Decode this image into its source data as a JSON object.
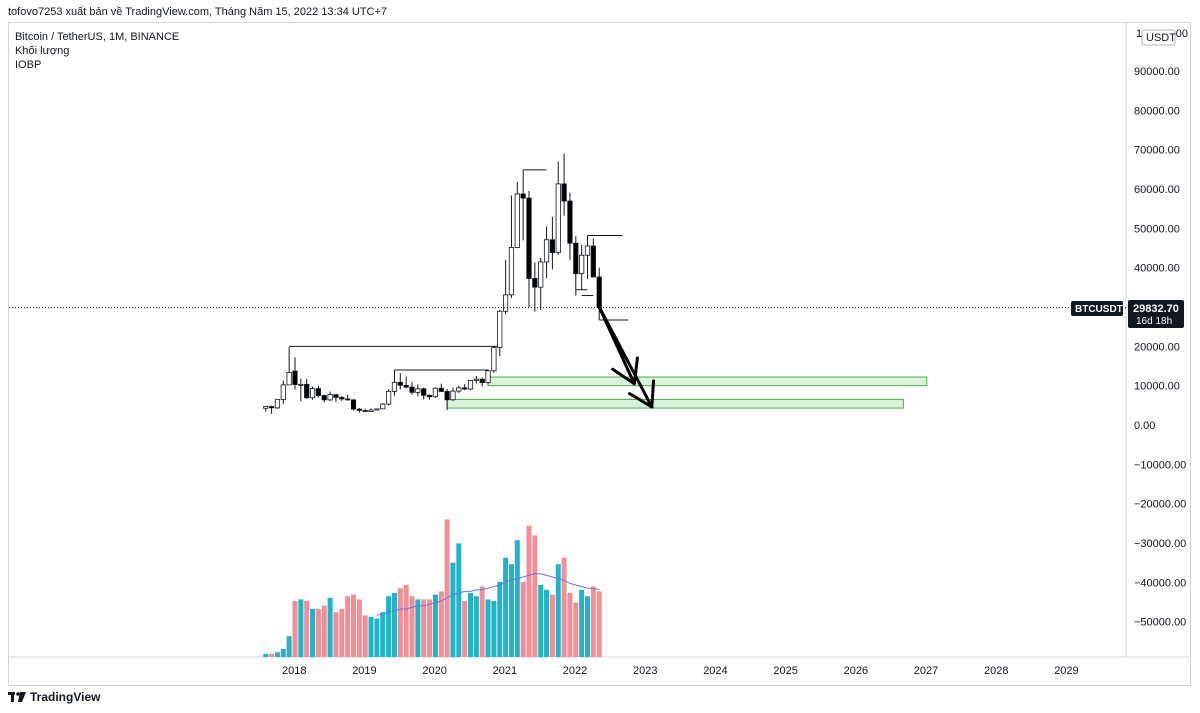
{
  "header": {
    "publish_line": "tofovo7253 xuất bản về TradingView.com, Tháng Năm 15, 2022 13:34 UTC+7"
  },
  "legend": {
    "symbol": "Bitcoin / TetherUS, 1M, BINANCE",
    "volume": "Khối lượng",
    "indicator": "IOBP"
  },
  "price_axis": {
    "currency_badge": "USDT",
    "top_partial_label": "100000.00",
    "ticks": [
      "90000.00",
      "80000.00",
      "70000.00",
      "60000.00",
      "50000.00",
      "40000.00",
      "20000.00",
      "10000.00",
      "0.00",
      "−10000.00",
      "−20000.00",
      "−30000.00",
      "−40000.00",
      "−50000.00"
    ],
    "tick_values": [
      90000,
      80000,
      70000,
      60000,
      50000,
      40000,
      20000,
      10000,
      0,
      -10000,
      -20000,
      -30000,
      -40000,
      -50000
    ]
  },
  "time_axis": {
    "ticks": [
      "2018",
      "2019",
      "2020",
      "2021",
      "2022",
      "2023",
      "2024",
      "2025",
      "2026",
      "2027",
      "2028",
      "2029"
    ]
  },
  "last_price": {
    "symbol_tag": "BTCUSDT",
    "price": "29832.70",
    "countdown": "16d 18h",
    "value": 29832.7
  },
  "footer": {
    "brand": "TradingView"
  },
  "colors": {
    "up": "#ffffff",
    "down": "#000000",
    "wick": "#131722",
    "vol_up": "#22b3c7",
    "vol_down": "#f28e96",
    "ma": "#5b7be8",
    "zone_fill": "#d9f2d9",
    "zone_stroke": "#4caf50"
  },
  "chart_data": {
    "type": "candlestick",
    "title": "Bitcoin / TetherUS, 1M, BINANCE",
    "interval": "1M",
    "ylim": [
      -60000,
      102000
    ],
    "x_range": [
      "2017-08",
      "2029-12"
    ],
    "candles": [
      {
        "t": "2017-08",
        "o": 4261,
        "h": 4745,
        "l": 3400,
        "c": 4724
      },
      {
        "t": "2017-09",
        "o": 4690,
        "h": 4939,
        "l": 2817,
        "c": 4378
      },
      {
        "t": "2017-10",
        "o": 4341,
        "h": 6447,
        "l": 4110,
        "c": 6463
      },
      {
        "t": "2017-11",
        "o": 6463,
        "h": 11300,
        "l": 5325,
        "c": 10198
      },
      {
        "t": "2017-12",
        "o": 10198,
        "h": 19798,
        "l": 10198,
        "c": 13380
      },
      {
        "t": "2018-01",
        "o": 13715,
        "h": 17176,
        "l": 9035,
        "c": 10285
      },
      {
        "t": "2018-02",
        "o": 10285,
        "h": 11786,
        "l": 6000,
        "c": 10326
      },
      {
        "t": "2018-03",
        "o": 10326,
        "h": 11710,
        "l": 6600,
        "c": 6923
      },
      {
        "t": "2018-04",
        "o": 6922,
        "h": 9759,
        "l": 6430,
        "c": 9246
      },
      {
        "t": "2018-05",
        "o": 9246,
        "h": 10020,
        "l": 7032,
        "c": 7485
      },
      {
        "t": "2018-06",
        "o": 7486,
        "h": 7760,
        "l": 5750,
        "c": 6391
      },
      {
        "t": "2018-07",
        "o": 6391,
        "h": 8507,
        "l": 6111,
        "c": 7730
      },
      {
        "t": "2018-08",
        "o": 7735,
        "h": 7750,
        "l": 5880,
        "c": 7011
      },
      {
        "t": "2018-09",
        "o": 7011,
        "h": 7410,
        "l": 6111,
        "c": 6626
      },
      {
        "t": "2018-10",
        "o": 6626,
        "h": 7680,
        "l": 6205,
        "c": 6371
      },
      {
        "t": "2018-11",
        "o": 6369,
        "h": 6615,
        "l": 3652,
        "c": 4041
      },
      {
        "t": "2018-12",
        "o": 4041,
        "h": 4312,
        "l": 3156,
        "c": 3702
      },
      {
        "t": "2019-01",
        "o": 3702,
        "h": 4143,
        "l": 3349,
        "c": 3434
      },
      {
        "t": "2019-02",
        "o": 3434,
        "h": 4210,
        "l": 3374,
        "c": 3814
      },
      {
        "t": "2019-03",
        "o": 3814,
        "h": 4140,
        "l": 3670,
        "c": 4103
      },
      {
        "t": "2019-04",
        "o": 4103,
        "h": 5600,
        "l": 4069,
        "c": 5321
      },
      {
        "t": "2019-05",
        "o": 5321,
        "h": 9074,
        "l": 5000,
        "c": 8555
      },
      {
        "t": "2019-06",
        "o": 8555,
        "h": 13970,
        "l": 7444,
        "c": 10855
      },
      {
        "t": "2019-07",
        "o": 10855,
        "h": 13183,
        "l": 9011,
        "c": 10085
      },
      {
        "t": "2019-08",
        "o": 10085,
        "h": 12326,
        "l": 9320,
        "c": 9630
      },
      {
        "t": "2019-09",
        "o": 9630,
        "h": 10905,
        "l": 7710,
        "c": 8294
      },
      {
        "t": "2019-10",
        "o": 8294,
        "h": 10370,
        "l": 7300,
        "c": 9199
      },
      {
        "t": "2019-11",
        "o": 9199,
        "h": 9505,
        "l": 6515,
        "c": 7546
      },
      {
        "t": "2019-12",
        "o": 7546,
        "h": 7750,
        "l": 6435,
        "c": 7195
      },
      {
        "t": "2020-01",
        "o": 7195,
        "h": 9578,
        "l": 6871,
        "c": 9352
      },
      {
        "t": "2020-02",
        "o": 9351,
        "h": 10500,
        "l": 8450,
        "c": 8523
      },
      {
        "t": "2020-03",
        "o": 8523,
        "h": 9188,
        "l": 3782,
        "c": 6410
      },
      {
        "t": "2020-04",
        "o": 6412,
        "h": 9468,
        "l": 6150,
        "c": 8621
      },
      {
        "t": "2020-05",
        "o": 8620,
        "h": 10067,
        "l": 8117,
        "c": 9449
      },
      {
        "t": "2020-06",
        "o": 9448,
        "h": 10380,
        "l": 8833,
        "c": 9138
      },
      {
        "t": "2020-07",
        "o": 9138,
        "h": 11444,
        "l": 8893,
        "c": 11335
      },
      {
        "t": "2020-08",
        "o": 11335,
        "h": 12468,
        "l": 10518,
        "c": 11649
      },
      {
        "t": "2020-09",
        "o": 11649,
        "h": 12050,
        "l": 9825,
        "c": 10776
      },
      {
        "t": "2020-10",
        "o": 10776,
        "h": 14100,
        "l": 10375,
        "c": 13791
      },
      {
        "t": "2020-11",
        "o": 13791,
        "h": 19863,
        "l": 13195,
        "c": 19695
      },
      {
        "t": "2020-12",
        "o": 19696,
        "h": 29300,
        "l": 17572,
        "c": 28923
      },
      {
        "t": "2021-01",
        "o": 28924,
        "h": 41950,
        "l": 28130,
        "c": 33092
      },
      {
        "t": "2021-02",
        "o": 33093,
        "h": 58352,
        "l": 32296,
        "c": 45135
      },
      {
        "t": "2021-03",
        "o": 45134,
        "h": 61844,
        "l": 44950,
        "c": 58740
      },
      {
        "t": "2021-04",
        "o": 58740,
        "h": 64854,
        "l": 46930,
        "c": 57694
      },
      {
        "t": "2021-05",
        "o": 57697,
        "h": 59500,
        "l": 30000,
        "c": 37253
      },
      {
        "t": "2021-06",
        "o": 37253,
        "h": 41330,
        "l": 28805,
        "c": 35045
      },
      {
        "t": "2021-07",
        "o": 35045,
        "h": 42448,
        "l": 29278,
        "c": 41461
      },
      {
        "t": "2021-08",
        "o": 41461,
        "h": 50500,
        "l": 37332,
        "c": 47100
      },
      {
        "t": "2021-09",
        "o": 47100,
        "h": 52920,
        "l": 39600,
        "c": 43824
      },
      {
        "t": "2021-10",
        "o": 43820,
        "h": 67000,
        "l": 43283,
        "c": 61299
      },
      {
        "t": "2021-11",
        "o": 61300,
        "h": 69000,
        "l": 53256,
        "c": 56950
      },
      {
        "t": "2021-12",
        "o": 56950,
        "h": 59053,
        "l": 42000,
        "c": 46216
      },
      {
        "t": "2022-01",
        "o": 46216,
        "h": 47990,
        "l": 32917,
        "c": 38466
      },
      {
        "t": "2022-02",
        "o": 38466,
        "h": 45821,
        "l": 34322,
        "c": 43160
      },
      {
        "t": "2022-03",
        "o": 43160,
        "h": 48189,
        "l": 37155,
        "c": 45510
      },
      {
        "t": "2022-04",
        "o": 45510,
        "h": 47444,
        "l": 37578,
        "c": 37630
      },
      {
        "t": "2022-05",
        "o": 37630,
        "h": 40023,
        "l": 26700,
        "c": 29832
      }
    ],
    "volume": {
      "up": [
        true,
        false,
        true,
        true,
        true,
        false,
        true,
        false,
        true,
        false,
        false,
        true,
        false,
        false,
        false,
        false,
        false,
        false,
        true,
        true,
        true,
        true,
        true,
        false,
        false,
        false,
        true,
        false,
        false,
        true,
        false,
        false,
        true,
        true,
        false,
        true,
        true,
        false,
        true,
        true,
        true,
        true,
        true,
        true,
        false,
        false,
        false,
        true,
        true,
        false,
        true,
        false,
        false,
        false,
        true,
        true,
        false,
        false
      ],
      "relative": [
        0.02,
        0.02,
        0.03,
        0.05,
        0.13,
        0.35,
        0.36,
        0.35,
        0.3,
        0.3,
        0.32,
        0.37,
        0.28,
        0.3,
        0.38,
        0.39,
        0.36,
        0.26,
        0.25,
        0.24,
        0.28,
        0.38,
        0.4,
        0.43,
        0.45,
        0.38,
        0.36,
        0.36,
        0.36,
        0.39,
        0.41,
        0.86,
        0.59,
        0.71,
        0.35,
        0.4,
        0.38,
        0.44,
        0.36,
        0.35,
        0.47,
        0.62,
        0.58,
        0.73,
        0.47,
        0.82,
        0.76,
        0.45,
        0.42,
        0.39,
        0.58,
        0.62,
        0.4,
        0.34,
        0.42,
        0.38,
        0.44,
        0.41
      ]
    },
    "volume_ma": [
      null,
      null,
      null,
      null,
      null,
      null,
      null,
      null,
      null,
      null,
      null,
      null,
      null,
      null,
      null,
      null,
      null,
      null,
      null,
      0.26,
      0.27,
      0.28,
      0.29,
      0.3,
      0.3,
      0.31,
      0.32,
      0.32,
      0.33,
      0.34,
      0.35,
      0.37,
      0.39,
      0.4,
      0.41,
      0.41,
      0.42,
      0.42,
      0.43,
      0.44,
      0.45,
      0.47,
      0.48,
      0.49,
      0.5,
      0.51,
      0.52,
      0.52,
      0.51,
      0.5,
      0.49,
      0.48,
      0.46,
      0.45,
      0.44,
      0.43,
      0.43,
      0.42
    ],
    "levels": [
      {
        "price": 20000,
        "from": "2017-12",
        "to": "2020-12"
      },
      {
        "price": 14000,
        "from": "2019-06",
        "to": "2020-10"
      },
      {
        "price": 64854,
        "from": "2021-04",
        "to": "2021-08"
      },
      {
        "price": 48189,
        "from": "2022-03",
        "to": "2022-09"
      },
      {
        "price": 26700,
        "from": "2022-05",
        "to": "2022-10"
      },
      {
        "price": 34400,
        "from": "2022-01",
        "to": "2022-03"
      },
      {
        "price": 32917,
        "from": "2022-02",
        "to": "2022-04"
      }
    ],
    "zones": [
      {
        "top": 12200,
        "bottom": 10000,
        "from": "2020-10",
        "to": "2027-01"
      },
      {
        "top": 6500,
        "bottom": 4300,
        "from": "2020-03",
        "to": "2026-09"
      }
    ],
    "arrows": [
      {
        "from": {
          "t": "2022-05",
          "p": 30000
        },
        "to": {
          "t": "2022-11",
          "p": 10500
        }
      },
      {
        "from": {
          "t": "2022-05",
          "p": 30000
        },
        "to": {
          "t": "2023-02",
          "p": 4600
        }
      }
    ]
  }
}
